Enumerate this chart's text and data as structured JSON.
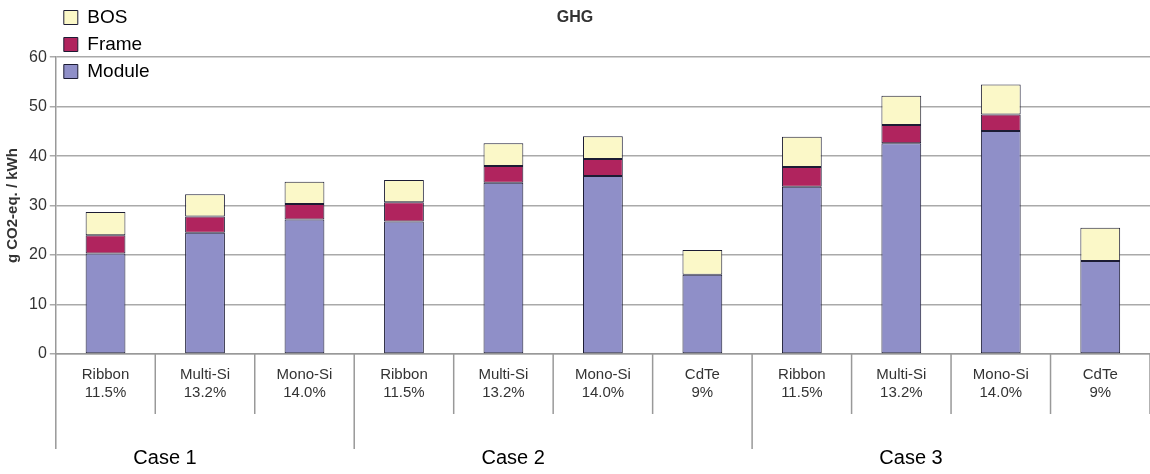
{
  "chart_data": {
    "type": "bar",
    "title": "GHG",
    "ylabel": "g CO2-eq. / kWh",
    "categories": [
      "Ribbon 11.5%",
      "Multi-Si 13.2%",
      "Mono-Si 14.0%",
      "Ribbon 11.5%",
      "Multi-Si 13.2%",
      "Mono-Si 14.0%",
      "CdTe 9%",
      "Ribbon 11.5%",
      "Multi-Si 13.2%",
      "Mono-Si 14.0%",
      "CdTe 9%"
    ],
    "series": [
      {
        "name": "Module",
        "color": "#8f8fc8",
        "values": [
          20.3,
          24.5,
          27.2,
          26.8,
          34.6,
          36,
          16,
          33.8,
          42.6,
          45.1,
          18.8
        ]
      },
      {
        "name": "Frame",
        "color": "#b0245e",
        "values": [
          3.7,
          3.3,
          3.1,
          3.9,
          3.4,
          3.4,
          null,
          4,
          3.7,
          3.3,
          null
        ]
      },
      {
        "name": "BOS",
        "color": "#fbf8c8",
        "values": [
          4.7,
          4.5,
          4.5,
          4.5,
          4.6,
          4.6,
          5,
          6.1,
          5.9,
          6.1,
          6.7
        ]
      }
    ],
    "stacked": true,
    "ylim": [
      0,
      60
    ],
    "yticks": [
      0,
      10,
      20,
      30,
      40,
      50,
      60
    ],
    "grid": "y",
    "legend": "top left",
    "annotations": [
      "Case 1",
      "Case 2",
      "Case 3"
    ]
  }
}
